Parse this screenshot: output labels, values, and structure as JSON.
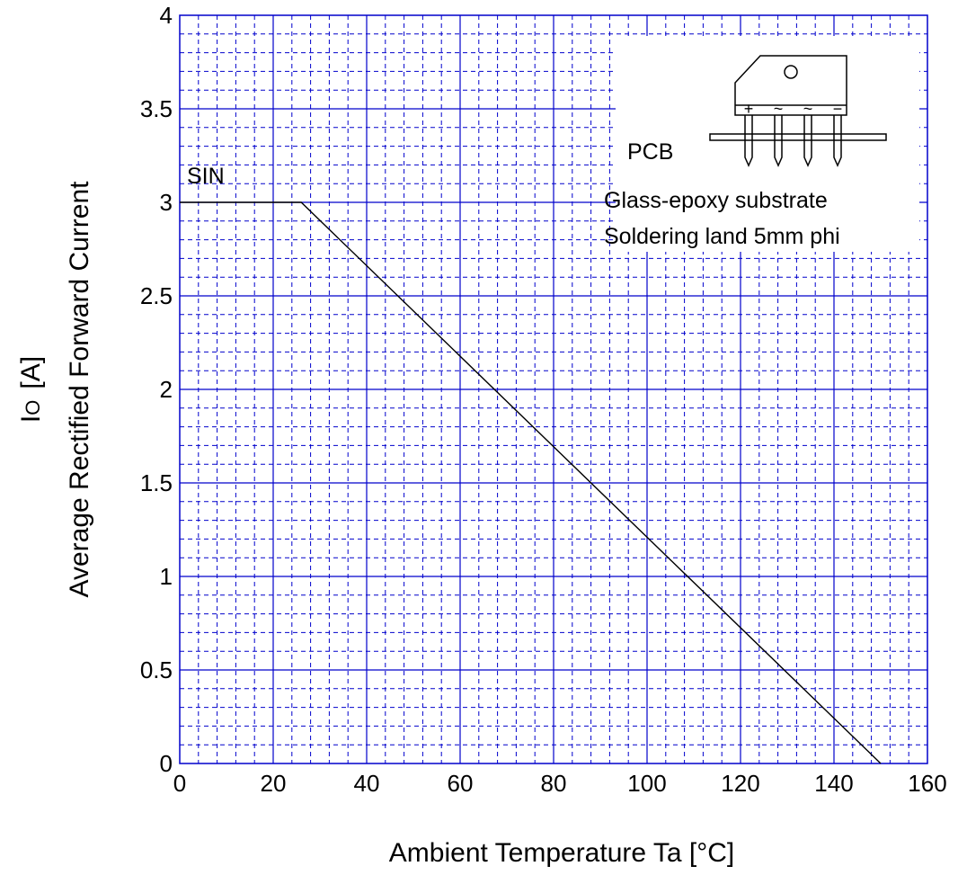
{
  "chart_data": {
    "type": "line",
    "xlabel": "Ambient Temperature  Ta  [°C]",
    "ylabel_main": "Average Rectified Forward Current",
    "ylabel_symbol": "I",
    "ylabel_subscript": "O",
    "ylabel_unit": "[A]",
    "xlim": [
      0,
      160
    ],
    "ylim": [
      0,
      4
    ],
    "x_ticks": [
      0,
      20,
      40,
      60,
      80,
      100,
      120,
      140,
      160
    ],
    "y_ticks": [
      0,
      0.5,
      1,
      1.5,
      2,
      2.5,
      3,
      3.5,
      4
    ],
    "x_tick_labels": [
      "0",
      "20",
      "40",
      "60",
      "80",
      "100",
      "120",
      "140",
      "160"
    ],
    "y_tick_labels": [
      "0",
      "0.5",
      "1",
      "1.5",
      "2",
      "2.5",
      "3",
      "3.5",
      "4"
    ],
    "grid": true,
    "series": [
      {
        "name": "SIN",
        "x": [
          0,
          26,
          150
        ],
        "y": [
          3,
          3,
          0
        ]
      }
    ],
    "annotations": {
      "series_label": "SIN",
      "pcb_label": "PCB",
      "note_line1": "Glass-epoxy substrate",
      "note_line2": "Soldering land 5mm phi",
      "pin_labels": [
        "+",
        "~",
        "~",
        "−"
      ]
    },
    "colors": {
      "grid": "#0000cc",
      "line": "#000000",
      "text": "#000000"
    }
  }
}
